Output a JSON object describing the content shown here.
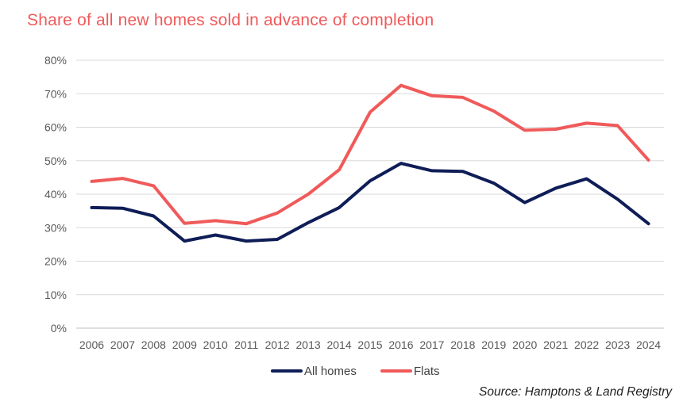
{
  "chart_data": {
    "type": "line",
    "title": "Share of all new homes sold in advance of completion",
    "categories": [
      "2006",
      "2007",
      "2008",
      "2009",
      "2010",
      "2011",
      "2012",
      "2013",
      "2014",
      "2015",
      "2016",
      "2017",
      "2018",
      "2019",
      "2020",
      "2021",
      "2022",
      "2023",
      "2024"
    ],
    "series": [
      {
        "name": "All homes",
        "color": "#0f1d57",
        "values": [
          36.0,
          35.8,
          33.5,
          26.0,
          27.8,
          26.0,
          26.5,
          31.5,
          36.0,
          44.0,
          49.2,
          47.0,
          46.8,
          43.3,
          37.5,
          41.8,
          44.6,
          38.5,
          31.2
        ]
      },
      {
        "name": "Flats",
        "color": "#f05a5a",
        "values": [
          43.8,
          44.7,
          42.5,
          31.3,
          32.1,
          31.2,
          34.4,
          40.0,
          47.3,
          64.5,
          72.5,
          69.4,
          68.9,
          64.8,
          59.1,
          59.4,
          61.2,
          60.5,
          50.2
        ]
      }
    ],
    "ylim": [
      0,
      80
    ],
    "yticks": [
      "0%",
      "10%",
      "20%",
      "30%",
      "40%",
      "50%",
      "60%",
      "70%",
      "80%"
    ],
    "grid": true,
    "legend_position": "bottom"
  },
  "source": "Source: Hamptons & Land Registry"
}
